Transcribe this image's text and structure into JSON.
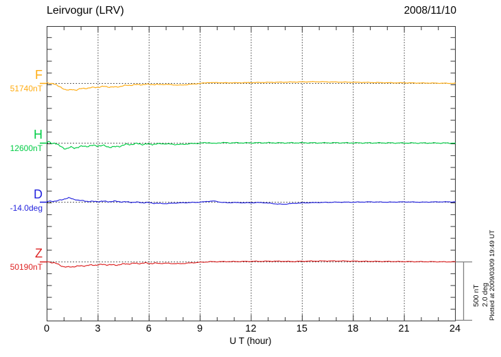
{
  "header": {
    "title": "Leirvogur (LRV)",
    "date": "2008/11/10"
  },
  "xaxis": {
    "label": "U T (hour)"
  },
  "scalebar": {
    "line1": "500 nT",
    "line2": "2.0 deg"
  },
  "footer": {
    "note": "Plotted at 2009/03/09 19:49 UT"
  },
  "chart_data": {
    "type": "line",
    "title": "Leirvogur (LRV)",
    "date": "2008/11/10",
    "xlabel": "U T (hour)",
    "xlim": [
      0,
      24
    ],
    "x_ticks": [
      0,
      3,
      6,
      9,
      12,
      15,
      18,
      21,
      24
    ],
    "grid": "vertical dotted every 3 h; dotted horizontal baseline per component",
    "scale_per_division": {
      "nT": 500,
      "deg": 2.0
    },
    "series": [
      {
        "name": "F",
        "baseline_label": "51740nT",
        "baseline_value": 51740,
        "unit": "nT",
        "color": "#ffac12",
        "points": [
          [
            0,
            2
          ],
          [
            0.2,
            -2
          ],
          [
            0.35,
            3
          ],
          [
            0.5,
            -8
          ],
          [
            0.7,
            -28
          ],
          [
            0.9,
            -40
          ],
          [
            1.1,
            -52
          ],
          [
            1.3,
            -58
          ],
          [
            1.5,
            -52
          ],
          [
            1.7,
            -55
          ],
          [
            1.9,
            -48
          ],
          [
            2.2,
            -42
          ],
          [
            2.5,
            -38
          ],
          [
            2.8,
            -33
          ],
          [
            3.1,
            -30
          ],
          [
            3.4,
            -26
          ],
          [
            3.7,
            -30
          ],
          [
            4.0,
            -32
          ],
          [
            4.3,
            -25
          ],
          [
            4.6,
            -18
          ],
          [
            5.0,
            -13
          ],
          [
            5.4,
            -10
          ],
          [
            5.8,
            -9
          ],
          [
            6.2,
            -8
          ],
          [
            6.6,
            -10
          ],
          [
            7.0,
            -8
          ],
          [
            7.4,
            -12
          ],
          [
            7.8,
            -15
          ],
          [
            8.1,
            -12
          ],
          [
            8.4,
            -8
          ],
          [
            8.8,
            -3
          ],
          [
            9.2,
            3
          ],
          [
            9.5,
            8
          ],
          [
            9.7,
            5
          ],
          [
            10.0,
            8
          ],
          [
            10.3,
            4
          ],
          [
            10.6,
            6
          ],
          [
            11.0,
            5
          ],
          [
            11.5,
            6
          ],
          [
            12.0,
            7
          ],
          [
            12.5,
            8
          ],
          [
            13.0,
            9
          ],
          [
            13.5,
            10
          ],
          [
            14.0,
            11
          ],
          [
            14.5,
            12
          ],
          [
            15.0,
            13
          ],
          [
            15.5,
            14
          ],
          [
            16.0,
            14
          ],
          [
            16.5,
            13
          ],
          [
            17.0,
            12
          ],
          [
            17.5,
            11
          ],
          [
            18.0,
            10
          ],
          [
            18.5,
            9
          ],
          [
            19.0,
            8
          ],
          [
            19.5,
            7
          ],
          [
            20.0,
            6
          ],
          [
            20.5,
            5
          ],
          [
            21.0,
            5
          ],
          [
            21.5,
            4
          ],
          [
            22.0,
            3
          ],
          [
            22.5,
            3
          ],
          [
            23.0,
            2
          ],
          [
            23.5,
            1
          ],
          [
            24,
            1
          ]
        ]
      },
      {
        "name": "H",
        "baseline_label": "12600nT",
        "baseline_value": 12600,
        "unit": "nT",
        "color": "#00cc44",
        "points": [
          [
            0,
            3
          ],
          [
            0.15,
            8
          ],
          [
            0.3,
            -4
          ],
          [
            0.45,
            6
          ],
          [
            0.6,
            -12
          ],
          [
            0.8,
            -30
          ],
          [
            1.0,
            -42
          ],
          [
            1.2,
            -45
          ],
          [
            1.4,
            -36
          ],
          [
            1.6,
            -40
          ],
          [
            1.8,
            -34
          ],
          [
            2.1,
            -28
          ],
          [
            2.4,
            -24
          ],
          [
            2.7,
            -22
          ],
          [
            3.0,
            -20
          ],
          [
            3.3,
            -22
          ],
          [
            3.6,
            -30
          ],
          [
            3.9,
            -34
          ],
          [
            4.1,
            -30
          ],
          [
            4.4,
            -20
          ],
          [
            4.7,
            -12
          ],
          [
            5.0,
            -8
          ],
          [
            5.3,
            -6
          ],
          [
            5.6,
            -8
          ],
          [
            5.9,
            -10
          ],
          [
            6.2,
            -8
          ],
          [
            6.5,
            -6
          ],
          [
            6.9,
            -5
          ],
          [
            7.3,
            -9
          ],
          [
            7.7,
            -12
          ],
          [
            8.0,
            -10
          ],
          [
            8.4,
            -5
          ],
          [
            8.8,
            -2
          ],
          [
            9.2,
            2
          ],
          [
            9.5,
            5
          ],
          [
            9.8,
            -4
          ],
          [
            10.1,
            3
          ],
          [
            10.4,
            4
          ],
          [
            10.8,
            2
          ],
          [
            11.2,
            3
          ],
          [
            11.6,
            2
          ],
          [
            12,
            3
          ],
          [
            13,
            3
          ],
          [
            14,
            2
          ],
          [
            15,
            3
          ],
          [
            16,
            2
          ],
          [
            17,
            3
          ],
          [
            18,
            2
          ],
          [
            19,
            2
          ],
          [
            20,
            2
          ],
          [
            21,
            1
          ],
          [
            22,
            1
          ],
          [
            23,
            1
          ],
          [
            24,
            0
          ]
        ]
      },
      {
        "name": "D",
        "baseline_label": "-14.0deg",
        "baseline_value": -14.0,
        "unit": "deg",
        "color": "#2222dd",
        "points": [
          [
            0,
            0.02
          ],
          [
            0.3,
            0.03
          ],
          [
            0.6,
            0.05
          ],
          [
            0.9,
            0.08
          ],
          [
            1.1,
            0.13
          ],
          [
            1.3,
            0.15
          ],
          [
            1.5,
            0.1
          ],
          [
            1.7,
            0.09
          ],
          [
            2.0,
            0.05
          ],
          [
            2.4,
            0.03
          ],
          [
            2.8,
            0.02
          ],
          [
            3.2,
            0.03
          ],
          [
            3.6,
            0.02
          ],
          [
            4.0,
            0.03
          ],
          [
            4.5,
            0.01
          ],
          [
            5.0,
            0.0
          ],
          [
            5.5,
            -0.01
          ],
          [
            6.0,
            -0.02
          ],
          [
            6.5,
            -0.04
          ],
          [
            7.0,
            -0.05
          ],
          [
            7.5,
            -0.03
          ],
          [
            8.0,
            -0.02
          ],
          [
            8.5,
            -0.01
          ],
          [
            9.0,
            0.0
          ],
          [
            9.5,
            0.03
          ],
          [
            9.8,
            0.04
          ],
          [
            10.2,
            0.0
          ],
          [
            10.6,
            -0.02
          ],
          [
            11.0,
            -0.01
          ],
          [
            11.5,
            -0.02
          ],
          [
            12.0,
            -0.02
          ],
          [
            12.5,
            -0.01
          ],
          [
            13.0,
            -0.03
          ],
          [
            13.5,
            -0.06
          ],
          [
            13.9,
            -0.07
          ],
          [
            14.3,
            -0.05
          ],
          [
            14.8,
            -0.03
          ],
          [
            15.3,
            -0.02
          ],
          [
            16,
            -0.01
          ],
          [
            17,
            0.0
          ],
          [
            18,
            0.0
          ],
          [
            19,
            0.01
          ],
          [
            20,
            0.0
          ],
          [
            21,
            0.01
          ],
          [
            22,
            0.0
          ],
          [
            23,
            0.01
          ],
          [
            24,
            0.01
          ]
        ]
      },
      {
        "name": "Z",
        "baseline_label": "50190nT",
        "baseline_value": 50190,
        "unit": "nT",
        "color": "#dd2222",
        "points": [
          [
            0,
            1
          ],
          [
            0.2,
            -2
          ],
          [
            0.4,
            -6
          ],
          [
            0.6,
            -18
          ],
          [
            0.8,
            -30
          ],
          [
            1.0,
            -40
          ],
          [
            1.2,
            -45
          ],
          [
            1.4,
            -42
          ],
          [
            1.6,
            -38
          ],
          [
            1.9,
            -36
          ],
          [
            2.2,
            -32
          ],
          [
            2.5,
            -29
          ],
          [
            2.8,
            -26
          ],
          [
            3.1,
            -24
          ],
          [
            3.4,
            -22
          ],
          [
            3.7,
            -25
          ],
          [
            4.0,
            -27
          ],
          [
            4.3,
            -22
          ],
          [
            4.6,
            -17
          ],
          [
            5.0,
            -14
          ],
          [
            5.4,
            -12
          ],
          [
            5.8,
            -11
          ],
          [
            6.2,
            -12
          ],
          [
            6.6,
            -13
          ],
          [
            7.0,
            -11
          ],
          [
            7.4,
            -14
          ],
          [
            7.8,
            -15
          ],
          [
            8.1,
            -12
          ],
          [
            8.5,
            -8
          ],
          [
            8.9,
            -4
          ],
          [
            9.3,
            -1
          ],
          [
            9.6,
            2
          ],
          [
            10,
            2
          ],
          [
            10.5,
            3
          ],
          [
            11,
            3
          ],
          [
            11.5,
            4
          ],
          [
            12,
            5
          ],
          [
            12.5,
            5
          ],
          [
            13,
            6
          ],
          [
            13.5,
            6
          ],
          [
            14,
            5
          ],
          [
            14.4,
            3
          ],
          [
            14.8,
            5
          ],
          [
            15.2,
            6
          ],
          [
            15.7,
            7
          ],
          [
            16.2,
            8
          ],
          [
            16.7,
            8
          ],
          [
            17.2,
            8
          ],
          [
            17.7,
            7
          ],
          [
            18.2,
            6
          ],
          [
            18.7,
            5
          ],
          [
            19.2,
            5
          ],
          [
            19.7,
            4
          ],
          [
            20.2,
            4
          ],
          [
            20.7,
            3
          ],
          [
            21.2,
            3
          ],
          [
            21.7,
            2
          ],
          [
            22.2,
            2
          ],
          [
            22.7,
            2
          ],
          [
            23.2,
            1
          ],
          [
            23.6,
            1
          ],
          [
            24,
            1
          ]
        ]
      }
    ]
  }
}
